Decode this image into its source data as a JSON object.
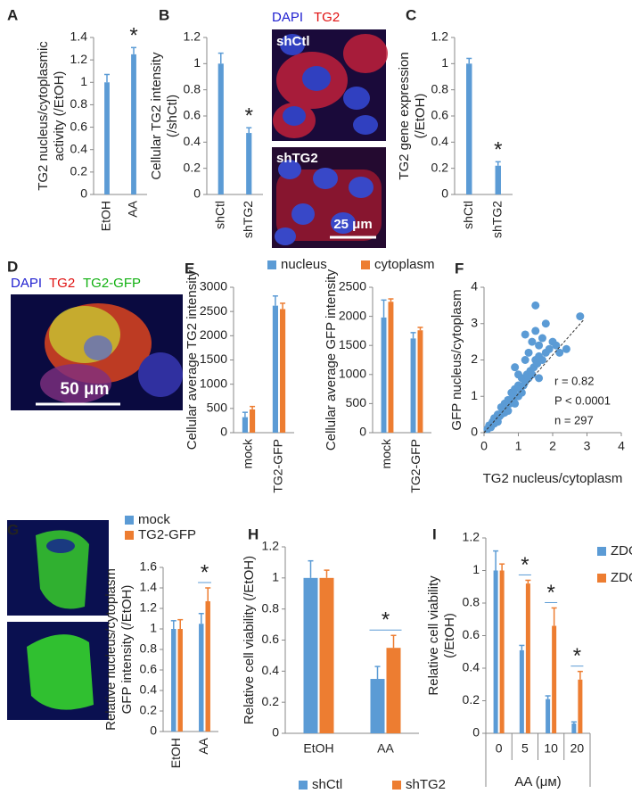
{
  "chart_data": [
    {
      "type": "bar",
      "panel": "A",
      "categories": [
        "EtOH",
        "AA"
      ],
      "series": [
        {
          "name": null,
          "color": "#5b9bd5",
          "values": [
            1,
            1.25
          ],
          "errors": [
            0.07,
            0.06
          ]
        }
      ],
      "ylim": [
        0,
        1.4
      ],
      "yticks": [
        0,
        0.2,
        0.4,
        0.6,
        0.8,
        1,
        1.2,
        1.4
      ],
      "ylabel": [
        "TG2 nucleus/cytoplasmic",
        "activity (/EtOH)"
      ],
      "annotations": [
        {
          "text": "*",
          "category": 1
        }
      ]
    },
    {
      "type": "bar",
      "panel": "B",
      "categories": [
        "shCtl",
        "shTG2"
      ],
      "series": [
        {
          "name": null,
          "color": "#5b9bd5",
          "values": [
            1,
            0.47
          ],
          "errors": [
            0.08,
            0.04
          ]
        }
      ],
      "ylim": [
        0,
        1.2
      ],
      "yticks": [
        0,
        0.2,
        0.4,
        0.6,
        0.8,
        1,
        1.2
      ],
      "ylabel": [
        "Cellular TG2 intensity",
        "(/shCtl)"
      ],
      "annotations": [
        {
          "text": "*",
          "category": 1
        }
      ]
    },
    {
      "type": "bar",
      "panel": "C",
      "categories": [
        "shCtl",
        "shTG2"
      ],
      "series": [
        {
          "name": null,
          "color": "#5b9bd5",
          "values": [
            1,
            0.22
          ],
          "errors": [
            0.04,
            0.03
          ]
        }
      ],
      "ylim": [
        0,
        1.2
      ],
      "yticks": [
        0,
        0.2,
        0.4,
        0.6,
        0.8,
        1,
        1.2
      ],
      "ylabel": [
        "TG2 gene expression",
        "(/EtOH)"
      ],
      "annotations": [
        {
          "text": "*",
          "category": 1
        }
      ]
    },
    {
      "type": "bar",
      "panel": "E",
      "categories": [
        "mock",
        "TG2-GFP"
      ],
      "series": [
        {
          "name": "nucleus",
          "color": "#5b9bd5",
          "values": [
            320,
            2620
          ],
          "errors": [
            100,
            200
          ]
        },
        {
          "name": "cytoplasm",
          "color": "#ed7d31",
          "values": [
            480,
            2550
          ],
          "errors": [
            60,
            120
          ]
        }
      ],
      "ylim": [
        0,
        3000
      ],
      "yticks": [
        0,
        500,
        1000,
        1500,
        2000,
        2500,
        3000
      ],
      "ylabel": [
        "Cellular average TG2 intensity"
      ],
      "legend": "top"
    },
    {
      "type": "bar",
      "categories": [
        "mock",
        "TG2-GFP"
      ],
      "series": [
        {
          "name": null,
          "color": "#5b9bd5",
          "values": [
            1980,
            1620
          ],
          "errors": [
            300,
            100
          ]
        },
        {
          "name": null,
          "color": "#ed7d31",
          "values": [
            2250,
            1760
          ],
          "errors": [
            50,
            50
          ]
        }
      ],
      "ylim": [
        0,
        2500
      ],
      "yticks": [
        0,
        500,
        1000,
        1500,
        2000,
        2500
      ],
      "ylabel": [
        "Cellular average GFP intensity"
      ]
    },
    {
      "type": "scatter",
      "panel": "F",
      "color": "#5b9bd5",
      "x": [
        0.1,
        0.15,
        0.2,
        0.25,
        0.3,
        0.3,
        0.35,
        0.4,
        0.4,
        0.45,
        0.5,
        0.5,
        0.55,
        0.6,
        0.6,
        0.65,
        0.7,
        0.7,
        0.75,
        0.8,
        0.8,
        0.85,
        0.9,
        0.9,
        0.95,
        1.0,
        1.0,
        1.05,
        1.1,
        1.1,
        1.15,
        1.2,
        1.2,
        1.25,
        1.3,
        1.3,
        1.35,
        1.4,
        1.4,
        1.45,
        1.5,
        1.5,
        1.55,
        1.6,
        1.6,
        1.7,
        1.7,
        1.8,
        1.8,
        1.9,
        2.0,
        2.1,
        2.2,
        2.4,
        2.8,
        1.2,
        1.5,
        1.0,
        0.9,
        1.6
      ],
      "y": [
        0.1,
        0.2,
        0.15,
        0.3,
        0.25,
        0.4,
        0.35,
        0.3,
        0.5,
        0.45,
        0.5,
        0.7,
        0.6,
        0.55,
        0.8,
        0.7,
        0.9,
        0.6,
        0.8,
        0.9,
        1.1,
        1.0,
        1.2,
        0.8,
        1.0,
        1.3,
        1.0,
        1.2,
        1.5,
        1.1,
        1.3,
        2.0,
        1.4,
        1.6,
        1.5,
        2.2,
        1.7,
        1.6,
        2.5,
        1.8,
        2.0,
        2.8,
        1.9,
        2.1,
        2.4,
        2.0,
        2.6,
        2.2,
        3.0,
        2.3,
        2.5,
        2.4,
        2.2,
        2.3,
        3.2,
        2.7,
        3.5,
        1.6,
        1.8,
        1.5
      ],
      "fit": {
        "x": [
          0,
          2.9
        ],
        "y": [
          0,
          3.1
        ]
      },
      "xlim": [
        0,
        4
      ],
      "ylim": [
        0,
        4
      ],
      "xticks": [
        0,
        1,
        2,
        3,
        4
      ],
      "yticks": [
        0,
        1,
        2,
        3,
        4
      ],
      "xlabel": "TG2 nucleus/cytoplasm",
      "ylabel": [
        "GFP nucleus/cytoplasm"
      ],
      "stats": [
        "r = 0.82",
        "P < 0.0001",
        "n = 297"
      ]
    },
    {
      "type": "bar",
      "panel": "G",
      "categories": [
        "EtOH",
        "AA"
      ],
      "series": [
        {
          "name": "mock",
          "color": "#5b9bd5",
          "values": [
            1.0,
            1.05
          ],
          "errors": [
            0.08,
            0.1
          ]
        },
        {
          "name": "TG2-GFP",
          "color": "#ed7d31",
          "values": [
            1.0,
            1.27
          ],
          "errors": [
            0.09,
            0.13
          ]
        }
      ],
      "ylim": [
        0,
        1.6
      ],
      "yticks": [
        0,
        0.2,
        0.4,
        0.6,
        0.8,
        1,
        1.2,
        1.4,
        1.6
      ],
      "ylabel": [
        "Relative nucleus/cytoplasm",
        "GFP intensity (/EtOH)"
      ],
      "annotations": [
        {
          "text": "*",
          "category": 1,
          "line": true
        }
      ],
      "legend": "top"
    },
    {
      "type": "bar",
      "panel": "H",
      "categories": [
        "EtOH",
        "AA"
      ],
      "series": [
        {
          "name": "shCtl",
          "color": "#5b9bd5",
          "values": [
            1.0,
            0.35
          ],
          "errors": [
            0.11,
            0.08
          ]
        },
        {
          "name": "shTG2",
          "color": "#ed7d31",
          "values": [
            1.0,
            0.55
          ],
          "errors": [
            0.05,
            0.08
          ]
        }
      ],
      "ylim": [
        0,
        1.2
      ],
      "yticks": [
        0,
        0.2,
        0.4,
        0.6,
        0.8,
        1,
        1.2
      ],
      "ylabel": [
        "Relative cell viability (/EtOH)"
      ],
      "annotations": [
        {
          "text": "*",
          "category": 1,
          "line": true
        }
      ],
      "legend": "bottom"
    },
    {
      "type": "bar",
      "panel": "I",
      "categories": [
        "0",
        "5",
        "10",
        "20"
      ],
      "series": [
        {
          "name": "ZDON-",
          "color": "#5b9bd5",
          "values": [
            1.0,
            0.51,
            0.21,
            0.06
          ],
          "errors": [
            0.12,
            0.03,
            0.02,
            0.01
          ]
        },
        {
          "name": "ZDON+",
          "color": "#ed7d31",
          "values": [
            1.0,
            0.92,
            0.66,
            0.33
          ],
          "errors": [
            0.04,
            0.02,
            0.11,
            0.05
          ]
        }
      ],
      "ylim": [
        0,
        1.2
      ],
      "yticks": [
        0,
        0.2,
        0.4,
        0.6,
        0.8,
        1,
        1.2
      ],
      "ylabel": [
        "Relative cell viability",
        "(/EtOH)"
      ],
      "xlabel": "AA (μм)",
      "annotations": [
        {
          "text": "*",
          "category": 1,
          "line": true
        },
        {
          "text": "*",
          "category": 2,
          "line": true
        },
        {
          "text": "*",
          "category": 3,
          "line": true
        }
      ],
      "legend": "right"
    }
  ],
  "images": {
    "B": {
      "channels": [
        "DAPI",
        "TG2"
      ],
      "top": "shCtl",
      "bottom": "shTG2",
      "scale": "25 μm"
    },
    "D": {
      "panel": "D",
      "channels": [
        "DAPI",
        "TG2",
        "TG2-GFP"
      ],
      "scale": "50 μm"
    }
  }
}
